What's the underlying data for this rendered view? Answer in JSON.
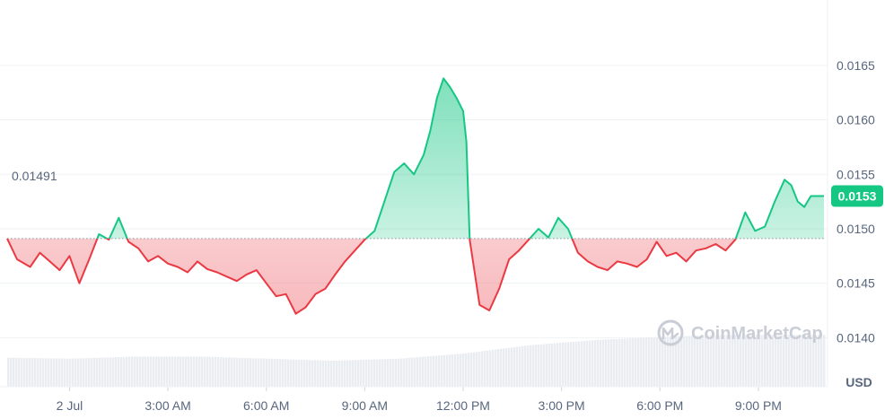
{
  "chart_data": {
    "type": "area",
    "title": "",
    "xlabel": "",
    "ylabel": "",
    "currency": "USD",
    "watermark": "CoinMarketCap",
    "baseline": {
      "value": 0.01491,
      "label": "0.01491"
    },
    "current": {
      "value": 0.0153,
      "label": "0.0153"
    },
    "ylim": [
      0.01355,
      0.0171
    ],
    "grid": true,
    "y_ticks": [
      {
        "value": 0.014,
        "label": "0.0140"
      },
      {
        "value": 0.0145,
        "label": "0.0145"
      },
      {
        "value": 0.015,
        "label": "0.0150"
      },
      {
        "value": 0.0155,
        "label": "0.0155"
      },
      {
        "value": 0.016,
        "label": "0.0160"
      },
      {
        "value": 0.0165,
        "label": "0.0165"
      }
    ],
    "x_ticks": [
      {
        "hour": 0,
        "label": "2 Jul"
      },
      {
        "hour": 3,
        "label": "3:00 AM"
      },
      {
        "hour": 6,
        "label": "6:00 AM"
      },
      {
        "hour": 9,
        "label": "9:00 AM"
      },
      {
        "hour": 12,
        "label": "12:00 PM"
      },
      {
        "hour": 15,
        "label": "3:00 PM"
      },
      {
        "hour": 18,
        "label": "6:00 PM"
      },
      {
        "hour": 21,
        "label": "9:00 PM"
      }
    ],
    "x_range_hours": [
      -1.9,
      23.0
    ],
    "series": [
      {
        "name": "",
        "x_hours": [
          -1.9,
          -1.6,
          -1.2,
          -0.9,
          -0.6,
          -0.3,
          0.0,
          0.3,
          0.6,
          0.9,
          1.2,
          1.5,
          1.8,
          2.1,
          2.4,
          2.7,
          3.0,
          3.3,
          3.6,
          3.9,
          4.2,
          4.5,
          4.8,
          5.1,
          5.4,
          5.7,
          6.0,
          6.3,
          6.6,
          6.9,
          7.2,
          7.5,
          7.8,
          8.1,
          8.4,
          8.7,
          9.0,
          9.3,
          9.6,
          9.9,
          10.2,
          10.5,
          10.8,
          11.0,
          11.2,
          11.4,
          11.6,
          11.8,
          12.0,
          12.1,
          12.2,
          12.5,
          12.8,
          13.1,
          13.4,
          13.7,
          14.0,
          14.3,
          14.6,
          14.9,
          15.2,
          15.5,
          15.8,
          16.1,
          16.4,
          16.7,
          17.0,
          17.3,
          17.6,
          17.9,
          18.2,
          18.5,
          18.8,
          19.1,
          19.4,
          19.7,
          20.0,
          20.3,
          20.6,
          20.9,
          21.2,
          21.5,
          21.8,
          22.0,
          22.2,
          22.4,
          22.6,
          22.8,
          23.0
        ],
        "values": [
          0.01491,
          0.01472,
          0.01465,
          0.01478,
          0.0147,
          0.01462,
          0.01475,
          0.0145,
          0.01472,
          0.01495,
          0.0149,
          0.0151,
          0.01488,
          0.01482,
          0.0147,
          0.01475,
          0.01468,
          0.01465,
          0.0146,
          0.0147,
          0.01463,
          0.0146,
          0.01456,
          0.01452,
          0.01458,
          0.01462,
          0.0145,
          0.01438,
          0.0144,
          0.01422,
          0.01428,
          0.0144,
          0.01445,
          0.01458,
          0.0147,
          0.0148,
          0.0149,
          0.01498,
          0.01525,
          0.01552,
          0.0156,
          0.0155,
          0.01568,
          0.0159,
          0.0162,
          0.01638,
          0.0163,
          0.0162,
          0.01608,
          0.0158,
          0.0149,
          0.0143,
          0.01425,
          0.01445,
          0.01472,
          0.0148,
          0.0149,
          0.015,
          0.01492,
          0.0151,
          0.015,
          0.01478,
          0.0147,
          0.01465,
          0.01462,
          0.0147,
          0.01468,
          0.01465,
          0.01472,
          0.01488,
          0.01475,
          0.01478,
          0.0147,
          0.0148,
          0.01482,
          0.01486,
          0.0148,
          0.0149,
          0.01515,
          0.01498,
          0.01502,
          0.01525,
          0.01545,
          0.0154,
          0.01525,
          0.0152,
          0.0153,
          0.0153,
          0.0153
        ]
      }
    ],
    "volume": {
      "x_hours": [
        -1.9,
        0.0,
        2.0,
        4.0,
        6.0,
        8.0,
        10.0,
        12.0,
        14.0,
        16.0,
        18.0,
        20.0,
        23.0
      ],
      "values": [
        0.28,
        0.27,
        0.29,
        0.29,
        0.27,
        0.25,
        0.27,
        0.32,
        0.4,
        0.45,
        0.48,
        0.5,
        0.5
      ]
    },
    "colors": {
      "up_line": "#16c784",
      "down_line": "#ea3943",
      "up_fill": "#16c784",
      "down_fill": "#ea3943",
      "current_badge": "#16c784",
      "axis_text": "#58667e",
      "grid": "#eff2f5",
      "volume": "#e9ecf1",
      "watermark": "#c9cdd6"
    }
  }
}
